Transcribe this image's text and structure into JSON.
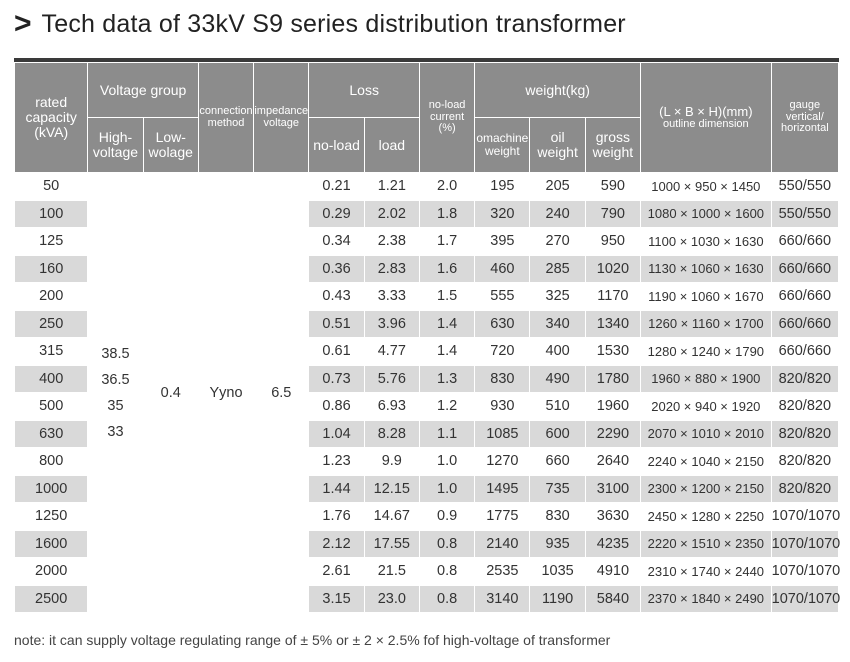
{
  "title": {
    "chevron": ">",
    "text": "Tech data of 33kV S9 series distribution transformer"
  },
  "headers": {
    "rated": "rated capacity (kVA)",
    "voltage_group": "Voltage group",
    "high": "High-voltage",
    "low": "Low-wolage",
    "connection": "connection method",
    "impedance": "impedance voltage",
    "loss": "Loss",
    "no_load_loss": "no-load",
    "load": "load",
    "noload_current": "no-load current (%)",
    "weight": "weight(kg)",
    "machine_weight": "omachine weight",
    "oil_weight": "oil weight",
    "gross_weight": "gross weight",
    "outline": "(L × B × H)(mm)",
    "outline_sub": "outline dimension",
    "gauge": "gauge vertical/ horizontal"
  },
  "merged": {
    "high_voltage": [
      "38.5",
      "36.5",
      "35",
      "33"
    ],
    "low_voltage": "0.4",
    "connection": "Yyno",
    "impedance": "6.5"
  },
  "rows": [
    {
      "cap": "50",
      "nl": "0.21",
      "ld": "1.21",
      "cur": "2.0",
      "mw": "195",
      "ow": "205",
      "gw": "590",
      "dim": "1000 × 950 × 1450",
      "gauge": "550/550"
    },
    {
      "cap": "100",
      "nl": "0.29",
      "ld": "2.02",
      "cur": "1.8",
      "mw": "320",
      "ow": "240",
      "gw": "790",
      "dim": "1080 × 1000 × 1600",
      "gauge": "550/550"
    },
    {
      "cap": "125",
      "nl": "0.34",
      "ld": "2.38",
      "cur": "1.7",
      "mw": "395",
      "ow": "270",
      "gw": "950",
      "dim": "1100 × 1030 × 1630",
      "gauge": "660/660"
    },
    {
      "cap": "160",
      "nl": "0.36",
      "ld": "2.83",
      "cur": "1.6",
      "mw": "460",
      "ow": "285",
      "gw": "1020",
      "dim": "1130 × 1060 × 1630",
      "gauge": "660/660"
    },
    {
      "cap": "200",
      "nl": "0.43",
      "ld": "3.33",
      "cur": "1.5",
      "mw": "555",
      "ow": "325",
      "gw": "1170",
      "dim": "1190 × 1060 × 1670",
      "gauge": "660/660"
    },
    {
      "cap": "250",
      "nl": "0.51",
      "ld": "3.96",
      "cur": "1.4",
      "mw": "630",
      "ow": "340",
      "gw": "1340",
      "dim": "1260 × 1160 × 1700",
      "gauge": "660/660"
    },
    {
      "cap": "315",
      "nl": "0.61",
      "ld": "4.77",
      "cur": "1.4",
      "mw": "720",
      "ow": "400",
      "gw": "1530",
      "dim": "1280 × 1240 × 1790",
      "gauge": "660/660"
    },
    {
      "cap": "400",
      "nl": "0.73",
      "ld": "5.76",
      "cur": "1.3",
      "mw": "830",
      "ow": "490",
      "gw": "1780",
      "dim": "1960 × 880 × 1900",
      "gauge": "820/820"
    },
    {
      "cap": "500",
      "nl": "0.86",
      "ld": "6.93",
      "cur": "1.2",
      "mw": "930",
      "ow": "510",
      "gw": "1960",
      "dim": "2020 × 940 × 1920",
      "gauge": "820/820"
    },
    {
      "cap": "630",
      "nl": "1.04",
      "ld": "8.28",
      "cur": "1.1",
      "mw": "1085",
      "ow": "600",
      "gw": "2290",
      "dim": "2070 × 1010 × 2010",
      "gauge": "820/820"
    },
    {
      "cap": "800",
      "nl": "1.23",
      "ld": "9.9",
      "cur": "1.0",
      "mw": "1270",
      "ow": "660",
      "gw": "2640",
      "dim": "2240 × 1040 × 2150",
      "gauge": "820/820"
    },
    {
      "cap": "1000",
      "nl": "1.44",
      "ld": "12.15",
      "cur": "1.0",
      "mw": "1495",
      "ow": "735",
      "gw": "3100",
      "dim": "2300 × 1200 × 2150",
      "gauge": "820/820"
    },
    {
      "cap": "1250",
      "nl": "1.76",
      "ld": "14.67",
      "cur": "0.9",
      "mw": "1775",
      "ow": "830",
      "gw": "3630",
      "dim": "2450 × 1280 × 2250",
      "gauge": "1070/1070"
    },
    {
      "cap": "1600",
      "nl": "2.12",
      "ld": "17.55",
      "cur": "0.8",
      "mw": "2140",
      "ow": "935",
      "gw": "4235",
      "dim": "2220 × 1510 × 2350",
      "gauge": "1070/1070"
    },
    {
      "cap": "2000",
      "nl": "2.61",
      "ld": "21.5",
      "cur": "0.8",
      "mw": "2535",
      "ow": "1035",
      "gw": "4910",
      "dim": "2310 × 1740 × 2440",
      "gauge": "1070/1070"
    },
    {
      "cap": "2500",
      "nl": "3.15",
      "ld": "23.0",
      "cur": "0.8",
      "mw": "3140",
      "ow": "1190",
      "gw": "5840",
      "dim": "2370 × 1840 × 2490",
      "gauge": "1070/1070"
    }
  ],
  "note": "note: it can supply voltage regulating range of  ± 5% or  ± 2 × 2.5% fof high-voltage of transformer",
  "colors": {
    "header_bg": "#8c8c8c",
    "header_text": "#ffffff",
    "stripe": "#d9d9d9",
    "rule": "#3a3a3a"
  }
}
